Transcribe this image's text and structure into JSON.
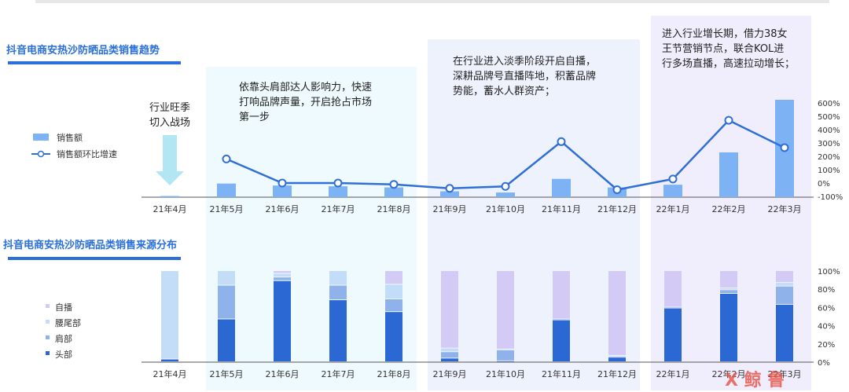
{
  "top_chart": {
    "title": "抖音电商安热沙防晒品类销售趋势",
    "legend": {
      "bar": "销售额",
      "line": "销售额环比增速"
    },
    "right_ticks": [
      "600%",
      "500%",
      "400%",
      "300%",
      "200%",
      "100%",
      "0%",
      "-100%"
    ]
  },
  "bottom_chart": {
    "title": "抖音电商安热沙防晒品类销售来源分布",
    "legend": [
      "自播",
      "腰尾部",
      "肩部",
      "头部"
    ],
    "right_ticks": [
      "100%",
      "80%",
      "60%",
      "40%",
      "20%",
      "0%"
    ]
  },
  "notes": {
    "n1": [
      "行业旺季",
      "切入战场"
    ],
    "n2": [
      "依靠头肩部达人影响力，快速",
      "打响品牌声量，开启抢占市场",
      "第一步"
    ],
    "n3": [
      "在行业进入淡季阶段开启自播，",
      "深耕品牌号直播阵地，积蓄品牌",
      "势能，蓄水人群资产；"
    ],
    "n4": [
      "进入行业增长期，借力38女",
      "王节营销节点，联合KOL进",
      "行多场直播，高速拉动增长；"
    ]
  },
  "watermark": "X 鲸 鲁",
  "colors": {
    "bar_top": "#7db3f5",
    "line": "#2f6fd6",
    "head": "#2b68d3",
    "shoulder": "#8fb2ea",
    "waist": "#c3dcf7",
    "self": "#d3caf6",
    "band_light": "#eefafd",
    "band_blue": "#eef2fd",
    "band_purple": "#f0eefd"
  },
  "chart_data": [
    {
      "type": "bar",
      "title": "抖音电商安热沙防晒品类销售趋势",
      "categories": [
        "21年4月",
        "21年5月",
        "21年6月",
        "21年7月",
        "21年8月",
        "21年9月",
        "21年10月",
        "21年11月",
        "21年12月",
        "22年1月",
        "22年2月",
        "22年3月"
      ],
      "series": [
        {
          "name": "销售额",
          "type": "bar",
          "values": [
            0.3,
            3.5,
            3.0,
            2.8,
            2.5,
            1.5,
            1.2,
            4.7,
            2.5,
            3.2,
            11.5,
            25.0
          ]
        },
        {
          "name": "销售额环比增速",
          "type": "line",
          "axis": "right",
          "values": [
            null,
            180,
            0,
            0,
            -10,
            -40,
            -25,
            310,
            -50,
            30,
            470,
            265
          ]
        }
      ],
      "y2_range": [
        -100,
        600
      ]
    },
    {
      "type": "bar",
      "stacked": true,
      "title": "抖音电商安热沙防晒品类销售来源分布",
      "categories": [
        "21年4月",
        "21年5月",
        "21年6月",
        "21年7月",
        "21年8月",
        "21年9月",
        "21年10月",
        "21年11月",
        "21年12月",
        "22年1月",
        "22年2月",
        "22年3月"
      ],
      "series": [
        {
          "name": "头部",
          "values": [
            3,
            47,
            89,
            68,
            55,
            4,
            1,
            46,
            5,
            59,
            75,
            63
          ]
        },
        {
          "name": "肩部",
          "values": [
            0,
            37,
            4,
            16,
            14,
            7,
            12,
            1,
            1,
            1,
            4,
            20
          ]
        },
        {
          "name": "腰尾部",
          "values": [
            97,
            16,
            4,
            16,
            16,
            4,
            1,
            0,
            1,
            0,
            2,
            4
          ]
        },
        {
          "name": "自播",
          "values": [
            0,
            0,
            3,
            0,
            15,
            85,
            86,
            53,
            93,
            40,
            19,
            13
          ]
        }
      ],
      "ylim": [
        0,
        100
      ]
    }
  ]
}
